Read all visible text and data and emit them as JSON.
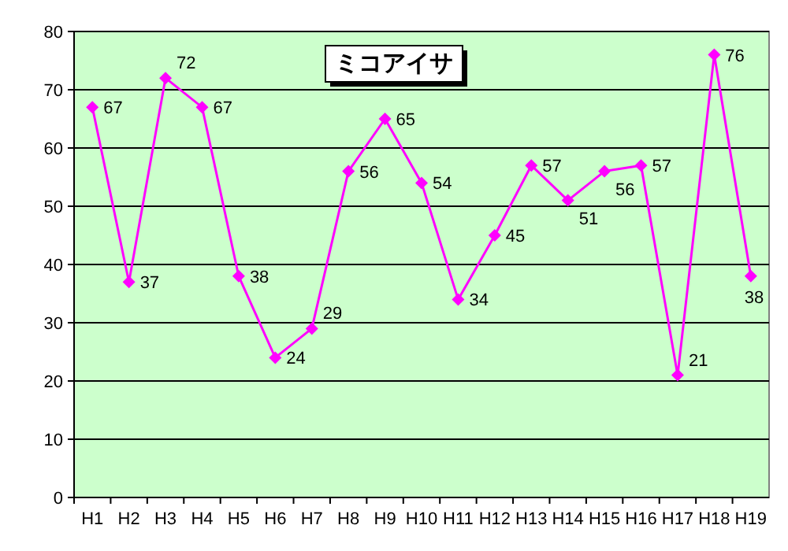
{
  "chart_data": {
    "type": "line",
    "title": "ミコアイサ",
    "categories": [
      "H1",
      "H2",
      "H3",
      "H4",
      "H5",
      "H6",
      "H7",
      "H8",
      "H9",
      "H10",
      "H11",
      "H12",
      "H13",
      "H14",
      "H15",
      "H16",
      "H17",
      "H18",
      "H19"
    ],
    "series": [
      {
        "color": "#ff00ff",
        "values": [
          67,
          37,
          72,
          67,
          38,
          24,
          29,
          56,
          65,
          54,
          34,
          45,
          57,
          51,
          56,
          57,
          21,
          76,
          38
        ]
      }
    ],
    "ylim": [
      0,
      80
    ],
    "yticks": [
      0,
      10,
      20,
      30,
      40,
      50,
      60,
      70,
      80
    ],
    "grid": "y",
    "marker": "diamond",
    "line_style": "solid",
    "data_labels": true
  }
}
